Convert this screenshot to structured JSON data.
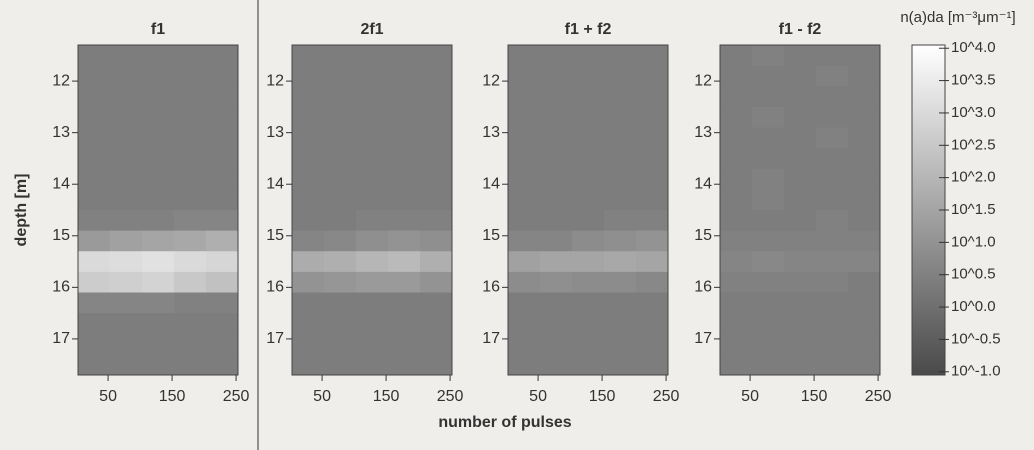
{
  "chart_data": [
    {
      "type": "heatmap",
      "title": "f1",
      "ylabel": "depth [m]",
      "x_bins": [
        3,
        53,
        103,
        153,
        203,
        253
      ],
      "y_bins": [
        11.3,
        11.7,
        12.1,
        12.5,
        12.9,
        13.3,
        13.7,
        14.1,
        14.5,
        14.9,
        15.3,
        15.7,
        16.1,
        16.5,
        16.9,
        17.3,
        17.7
      ],
      "values": [
        [
          0.4,
          0.4,
          0.4,
          0.4,
          0.4
        ],
        [
          0.4,
          0.4,
          0.4,
          0.4,
          0.4
        ],
        [
          0.4,
          0.4,
          0.4,
          0.4,
          0.4
        ],
        [
          0.4,
          0.4,
          0.4,
          0.4,
          0.4
        ],
        [
          0.4,
          0.4,
          0.4,
          0.4,
          0.4
        ],
        [
          0.4,
          0.4,
          0.4,
          0.4,
          0.4
        ],
        [
          0.4,
          0.4,
          0.4,
          0.4,
          0.4
        ],
        [
          0.4,
          0.4,
          0.4,
          0.4,
          0.4
        ],
        [
          0.5,
          0.5,
          0.5,
          0.6,
          0.6
        ],
        [
          1.2,
          1.4,
          1.5,
          1.6,
          1.8
        ],
        [
          3.0,
          3.1,
          3.2,
          3.0,
          2.9
        ],
        [
          2.6,
          2.7,
          2.8,
          2.5,
          2.3
        ],
        [
          0.6,
          0.6,
          0.6,
          0.5,
          0.5
        ],
        [
          0.4,
          0.4,
          0.4,
          0.4,
          0.4
        ],
        [
          0.4,
          0.4,
          0.4,
          0.4,
          0.4
        ],
        [
          0.4,
          0.4,
          0.4,
          0.4,
          0.4
        ]
      ],
      "xlim": [
        3,
        253
      ],
      "ylim": [
        17.7,
        11.3
      ],
      "xticks": [
        50,
        150,
        250
      ],
      "yticks": [
        12,
        13,
        14,
        15,
        16,
        17
      ]
    },
    {
      "type": "heatmap",
      "title": "2f1",
      "x_bins": [
        3,
        53,
        103,
        153,
        203,
        253
      ],
      "y_bins": [
        11.3,
        11.7,
        12.1,
        12.5,
        12.9,
        13.3,
        13.7,
        14.1,
        14.5,
        14.9,
        15.3,
        15.7,
        16.1,
        16.5,
        16.9,
        17.3,
        17.7
      ],
      "values": [
        [
          0.4,
          0.4,
          0.4,
          0.4,
          0.4
        ],
        [
          0.4,
          0.4,
          0.4,
          0.4,
          0.4
        ],
        [
          0.4,
          0.4,
          0.4,
          0.4,
          0.4
        ],
        [
          0.4,
          0.4,
          0.4,
          0.4,
          0.4
        ],
        [
          0.4,
          0.4,
          0.4,
          0.4,
          0.4
        ],
        [
          0.4,
          0.4,
          0.4,
          0.4,
          0.4
        ],
        [
          0.4,
          0.4,
          0.4,
          0.4,
          0.4
        ],
        [
          0.4,
          0.4,
          0.4,
          0.4,
          0.4
        ],
        [
          0.4,
          0.4,
          0.5,
          0.5,
          0.5
        ],
        [
          0.6,
          0.7,
          0.9,
          1.0,
          0.9
        ],
        [
          1.7,
          1.8,
          2.0,
          2.1,
          1.8
        ],
        [
          1.0,
          1.1,
          1.2,
          1.2,
          1.0
        ],
        [
          0.4,
          0.4,
          0.4,
          0.4,
          0.4
        ],
        [
          0.4,
          0.4,
          0.4,
          0.4,
          0.4
        ],
        [
          0.4,
          0.4,
          0.4,
          0.4,
          0.4
        ],
        [
          0.4,
          0.4,
          0.4,
          0.4,
          0.4
        ]
      ],
      "xlim": [
        3,
        253
      ],
      "ylim": [
        17.7,
        11.3
      ],
      "xticks": [
        50,
        150,
        250
      ],
      "yticks": [
        12,
        13,
        14,
        15,
        16,
        17
      ]
    },
    {
      "type": "heatmap",
      "title": "f1 + f2",
      "x_bins": [
        3,
        53,
        103,
        153,
        203,
        253
      ],
      "y_bins": [
        11.3,
        11.7,
        12.1,
        12.5,
        12.9,
        13.3,
        13.7,
        14.1,
        14.5,
        14.9,
        15.3,
        15.7,
        16.1,
        16.5,
        16.9,
        17.3,
        17.7
      ],
      "values": [
        [
          0.4,
          0.4,
          0.4,
          0.4,
          0.4
        ],
        [
          0.4,
          0.4,
          0.4,
          0.4,
          0.4
        ],
        [
          0.4,
          0.4,
          0.4,
          0.4,
          0.4
        ],
        [
          0.4,
          0.4,
          0.4,
          0.4,
          0.4
        ],
        [
          0.4,
          0.4,
          0.4,
          0.4,
          0.4
        ],
        [
          0.4,
          0.4,
          0.4,
          0.4,
          0.4
        ],
        [
          0.4,
          0.4,
          0.4,
          0.4,
          0.4
        ],
        [
          0.4,
          0.4,
          0.4,
          0.4,
          0.4
        ],
        [
          0.4,
          0.4,
          0.4,
          0.5,
          0.5
        ],
        [
          0.6,
          0.6,
          0.8,
          0.9,
          1.0
        ],
        [
          1.4,
          1.5,
          1.5,
          1.6,
          1.5
        ],
        [
          0.8,
          0.9,
          0.8,
          0.8,
          0.7
        ],
        [
          0.4,
          0.4,
          0.4,
          0.4,
          0.4
        ],
        [
          0.4,
          0.4,
          0.4,
          0.4,
          0.4
        ],
        [
          0.4,
          0.4,
          0.4,
          0.4,
          0.4
        ],
        [
          0.4,
          0.4,
          0.4,
          0.4,
          0.4
        ]
      ],
      "xlim": [
        3,
        253
      ],
      "ylim": [
        17.7,
        11.3
      ],
      "xticks": [
        50,
        150,
        250
      ],
      "yticks": [
        12,
        13,
        14,
        15,
        16,
        17
      ]
    },
    {
      "type": "heatmap",
      "title": "f1 - f2",
      "x_bins": [
        3,
        53,
        103,
        153,
        203,
        253
      ],
      "y_bins": [
        11.3,
        11.7,
        12.1,
        12.5,
        12.9,
        13.3,
        13.7,
        14.1,
        14.5,
        14.9,
        15.3,
        15.7,
        16.1,
        16.5,
        16.9,
        17.3,
        17.7
      ],
      "values": [
        [
          0.4,
          0.5,
          0.4,
          0.4,
          0.4
        ],
        [
          0.4,
          0.4,
          0.4,
          0.5,
          0.4
        ],
        [
          0.4,
          0.4,
          0.4,
          0.4,
          0.4
        ],
        [
          0.4,
          0.5,
          0.4,
          0.4,
          0.4
        ],
        [
          0.4,
          0.4,
          0.4,
          0.5,
          0.4
        ],
        [
          0.4,
          0.4,
          0.4,
          0.4,
          0.4
        ],
        [
          0.4,
          0.5,
          0.4,
          0.4,
          0.4
        ],
        [
          0.4,
          0.5,
          0.4,
          0.4,
          0.4
        ],
        [
          0.4,
          0.4,
          0.4,
          0.5,
          0.4
        ],
        [
          0.5,
          0.5,
          0.5,
          0.5,
          0.5
        ],
        [
          0.6,
          0.7,
          0.6,
          0.6,
          0.6
        ],
        [
          0.5,
          0.5,
          0.5,
          0.5,
          0.4
        ],
        [
          0.4,
          0.4,
          0.4,
          0.4,
          0.4
        ],
        [
          0.4,
          0.4,
          0.4,
          0.4,
          0.4
        ],
        [
          0.4,
          0.4,
          0.4,
          0.4,
          0.4
        ],
        [
          0.4,
          0.4,
          0.4,
          0.4,
          0.4
        ]
      ],
      "xlim": [
        3,
        253
      ],
      "ylim": [
        17.7,
        11.3
      ],
      "xticks": [
        50,
        150,
        250
      ],
      "yticks": [
        12,
        13,
        14,
        15,
        16,
        17
      ]
    }
  ],
  "xlabel": "number of pulses",
  "colorbar": {
    "label": "n(a)da [m⁻³μm⁻¹]",
    "clim": [
      -1.05,
      4.05
    ],
    "colors": [
      "#4a4a4a",
      "#ffffff"
    ],
    "ticks": [
      {
        "value": 4.0,
        "label": "10^4.0"
      },
      {
        "value": 3.5,
        "label": "10^3.5"
      },
      {
        "value": 3.0,
        "label": "10^3.0"
      },
      {
        "value": 2.5,
        "label": "10^2.5"
      },
      {
        "value": 2.0,
        "label": "10^2.0"
      },
      {
        "value": 1.5,
        "label": "10^1.5"
      },
      {
        "value": 1.0,
        "label": "10^1.0"
      },
      {
        "value": 0.5,
        "label": "10^0.5"
      },
      {
        "value": 0.0,
        "label": "10^0.0"
      },
      {
        "value": -0.5,
        "label": "10^-0.5"
      },
      {
        "value": -1.0,
        "label": "10^-1.0"
      }
    ]
  }
}
